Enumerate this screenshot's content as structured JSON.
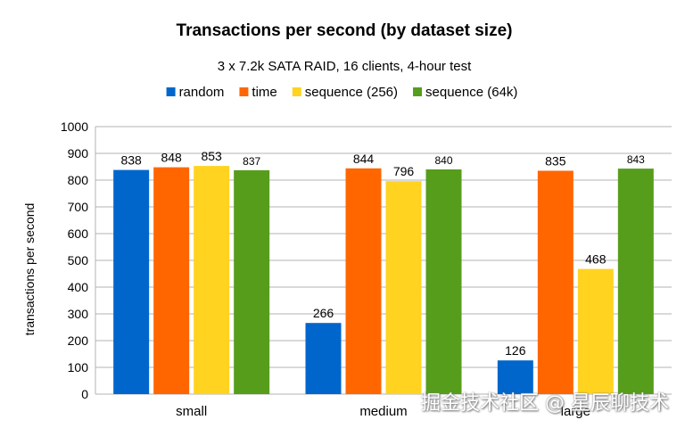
{
  "chart_data": {
    "type": "bar",
    "title": "Transactions per second (by dataset size)",
    "subtitle": "3 x 7.2k SATA RAID, 16 clients, 4-hour test",
    "ylabel": "transactions per second",
    "xlabel": "",
    "ylim": [
      0,
      1000
    ],
    "yticks": [
      0,
      100,
      200,
      300,
      400,
      500,
      600,
      700,
      800,
      900,
      1000
    ],
    "grid": true,
    "legend_position": "top",
    "categories": [
      "small",
      "medium",
      "large"
    ],
    "series": [
      {
        "name": "random",
        "color": "#0066cc",
        "values": [
          838,
          266,
          126
        ],
        "labels": [
          "838",
          "266",
          "126"
        ]
      },
      {
        "name": "time",
        "color": "#ff6600",
        "values": [
          848,
          844,
          835
        ],
        "labels": [
          "848",
          "844",
          "835"
        ]
      },
      {
        "name": "sequence (256)",
        "color": "#ffd320",
        "values": [
          853,
          796,
          468
        ],
        "labels": [
          "853",
          "796",
          "468"
        ]
      },
      {
        "name": "sequence (64k)",
        "color": "#579d1c",
        "values": [
          837,
          840,
          843
        ],
        "labels": [
          "837",
          "840",
          "843"
        ]
      }
    ]
  },
  "watermark": "掘金技术社区 @ 星辰聊技术"
}
